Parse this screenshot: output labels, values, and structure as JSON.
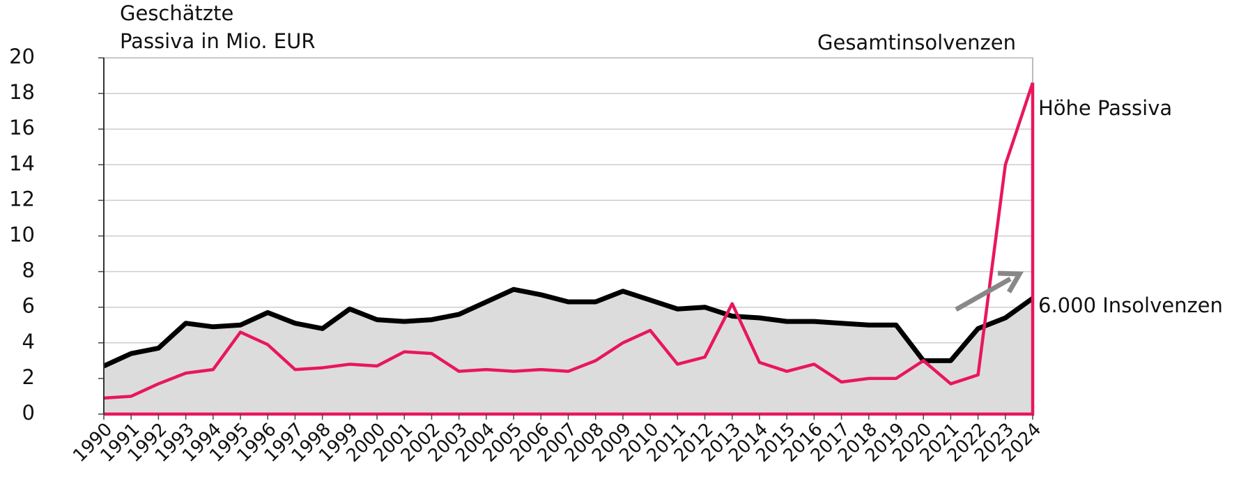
{
  "chart_data": {
    "type": "line",
    "y_label": [
      "Geschätzte",
      "Passiva in Mio. EUR"
    ],
    "y2_label": "Gesamtinsolvenzen",
    "categories": [
      "1990",
      "1991",
      "1992",
      "1993",
      "1994",
      "1995",
      "1996",
      "1997",
      "1998",
      "1999",
      "2000",
      "2001",
      "2002",
      "2003",
      "2004",
      "2005",
      "2006",
      "2007",
      "2008",
      "2009",
      "2010",
      "2011",
      "2012",
      "2013",
      "2014",
      "2015",
      "2016",
      "2017",
      "2018",
      "2019",
      "2020",
      "2021",
      "2022",
      "2023",
      "2024"
    ],
    "series": [
      {
        "name": "6.000 Insolvenzen",
        "color": "#000000",
        "fill": "#dcdcdc",
        "values": [
          2.7,
          3.4,
          3.7,
          5.1,
          4.9,
          5.0,
          5.7,
          5.1,
          4.8,
          5.9,
          5.3,
          5.2,
          5.3,
          5.6,
          6.3,
          7.0,
          6.7,
          6.3,
          6.3,
          6.9,
          6.4,
          5.9,
          6.0,
          5.5,
          5.4,
          5.2,
          5.2,
          5.1,
          5.0,
          5.0,
          3.0,
          3.0,
          4.8,
          5.4,
          6.5
        ]
      },
      {
        "name": "Höhe Passiva",
        "color": "#e8175d",
        "values": [
          0.9,
          1.0,
          1.7,
          2.3,
          2.5,
          4.6,
          3.9,
          2.5,
          2.6,
          2.8,
          2.7,
          3.5,
          3.4,
          2.4,
          2.5,
          2.4,
          2.5,
          2.4,
          3.0,
          4.0,
          4.7,
          2.8,
          3.2,
          6.2,
          2.9,
          2.4,
          2.8,
          1.8,
          2.0,
          2.0,
          3.0,
          1.7,
          2.2,
          14.0,
          18.6
        ]
      }
    ],
    "ylim": [
      0,
      20
    ],
    "yticks": [
      0,
      2,
      4,
      6,
      8,
      10,
      12,
      14,
      16,
      18,
      20
    ],
    "grid": true
  }
}
